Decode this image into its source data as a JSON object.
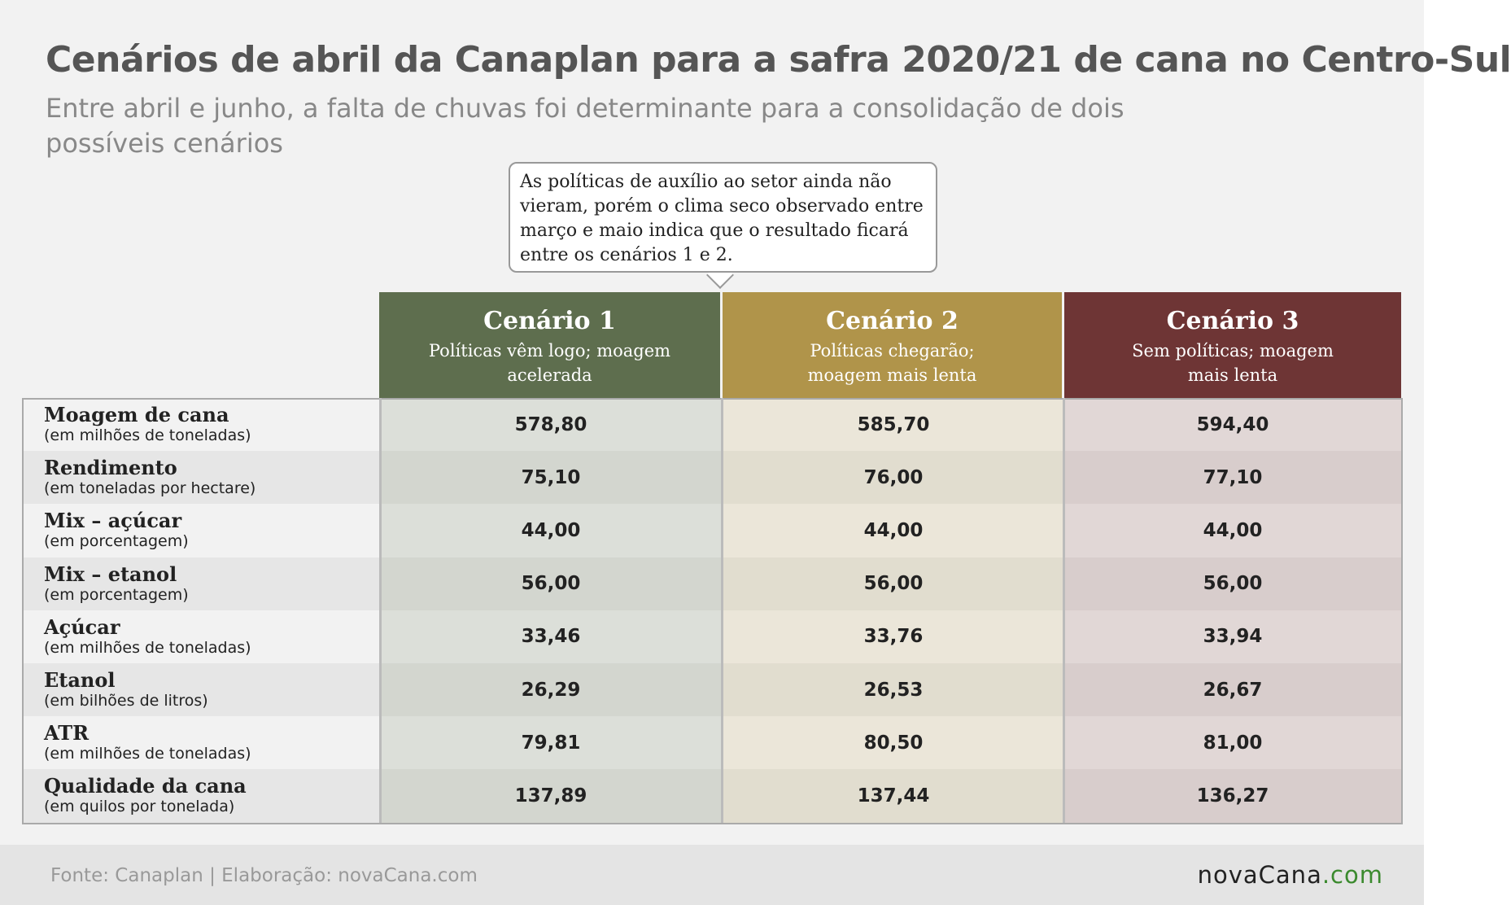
{
  "header": {
    "title": "Cenários de abril da Canaplan para a safra 2020/21 de cana no Centro-Sul",
    "subtitle": "Entre abril e junho, a falta de chuvas foi determinante para a consolidação de dois possíveis cenários"
  },
  "callout": "As políticas de auxílio ao setor ainda não vieram, porém o clima seco observado entre março e maio indica que o resultado ficará entre os cenários 1 e 2.",
  "table": {
    "columns": [
      {
        "title": "Cenário 1",
        "subtitle": "Políticas vêm logo; moagem acelerada",
        "color": "#5e6e4e",
        "tints": [
          "#dcdfd9",
          "#d3d6cf"
        ]
      },
      {
        "title": "Cenário 2",
        "subtitle": "Políticas chegarão; moagem mais lenta",
        "color": "#b0944a",
        "tints": [
          "#ebe6d9",
          "#e1ddcf"
        ]
      },
      {
        "title": "Cenário 3",
        "subtitle": "Sem políticas; moagem mais lenta",
        "color": "#6e3535",
        "tints": [
          "#e1d7d6",
          "#d8cdcc"
        ]
      }
    ],
    "rows": [
      {
        "label": "Moagem de cana",
        "unit": "(em milhões de toneladas)",
        "values": [
          "578,80",
          "585,70",
          "594,40"
        ]
      },
      {
        "label": "Rendimento",
        "unit": "(em toneladas por hectare)",
        "values": [
          "75,10",
          "76,00",
          "77,10"
        ]
      },
      {
        "label": "Mix – açúcar",
        "unit": "(em porcentagem)",
        "values": [
          "44,00",
          "44,00",
          "44,00"
        ]
      },
      {
        "label": "Mix – etanol",
        "unit": "(em porcentagem)",
        "values": [
          "56,00",
          "56,00",
          "56,00"
        ]
      },
      {
        "label": "Açúcar",
        "unit": "(em milhões de toneladas)",
        "values": [
          "33,46",
          "33,76",
          "33,94"
        ]
      },
      {
        "label": "Etanol",
        "unit": "(em bilhões de litros)",
        "values": [
          "26,29",
          "26,53",
          "26,67"
        ]
      },
      {
        "label": "ATR",
        "unit": "(em milhões de toneladas)",
        "values": [
          "79,81",
          "80,50",
          "81,00"
        ]
      },
      {
        "label": "Qualidade da cana",
        "unit": "(em quilos por tonelada)",
        "values": [
          "137,89",
          "137,44",
          "136,27"
        ]
      }
    ]
  },
  "footer": {
    "source": "Fonte: Canaplan | Elaboração: novaCana.com",
    "logo": [
      "novaCana",
      ".com"
    ]
  }
}
